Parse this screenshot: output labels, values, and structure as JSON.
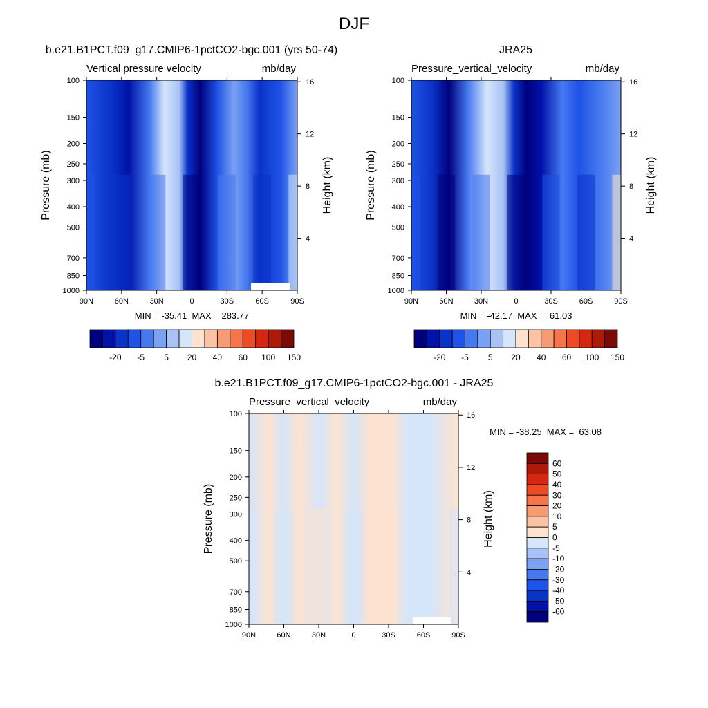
{
  "figure_title": "DJF",
  "chart_data": [
    {
      "type": "heatmap",
      "title": "b.e21.B1PCT.f09_g17.CMIP6-1pctCO2-bgc.001 (yrs 50-74)",
      "left_string": "Vertical pressure velocity",
      "right_string": "mb/day",
      "ylabel": "Pressure (mb)",
      "ylabel_right": "Height (km)",
      "x_ticks": [
        "90N",
        "60N",
        "30N",
        "0",
        "30S",
        "60S",
        "90S"
      ],
      "y_ticks": [
        "100",
        "150",
        "200",
        "250",
        "300",
        "400",
        "500",
        "700",
        "850",
        "1000"
      ],
      "y_ticks_right": [
        "16",
        "12",
        "8",
        "4"
      ],
      "min_max_text": "MIN = -35.41  MAX = 283.77",
      "min": -35.41,
      "max": 283.77,
      "colorbar_labels": [
        "-20",
        "-5",
        "5",
        "20",
        "40",
        "60",
        "100",
        "150"
      ],
      "colorbar_levels": [
        -30,
        -25,
        -20,
        -10,
        -5,
        0,
        5,
        10,
        20,
        30,
        40,
        50,
        60,
        80,
        100,
        150
      ],
      "colorbar_colors": [
        "#00007d",
        "#0012a8",
        "#0a33c8",
        "#1f52e6",
        "#4679f0",
        "#7aa1f3",
        "#a8c2f6",
        "#d5e5fa",
        "#fde3cf",
        "#fbc2a4",
        "#f79c72",
        "#f5744a",
        "#ee4a26",
        "#d5270f",
        "#ad1a08",
        "#7c0a04"
      ],
      "colorbar_orientation": "horizontal",
      "pattern": "Descending motion (blue) at all latitudes; strongest near the equator and around 60N; weakest in the subtropics (~20-30N) and near 50S.",
      "profile": [
        {
          "lat": "90N",
          "value": -18
        },
        {
          "lat": "60N",
          "value": -22
        },
        {
          "lat": "30N",
          "value": -5
        },
        {
          "lat": "0",
          "value": -33
        },
        {
          "lat": "30S",
          "value": -8
        },
        {
          "lat": "60S",
          "value": -22
        },
        {
          "lat": "90S",
          "value": 10
        }
      ]
    },
    {
      "type": "heatmap",
      "title": "JRA25",
      "left_string": "Pressure_vertical_velocity",
      "right_string": "mb/day",
      "ylabel": "Pressure (mb)",
      "ylabel_right": "Height (km)",
      "x_ticks": [
        "90N",
        "60N",
        "30N",
        "0",
        "30S",
        "60S",
        "90S"
      ],
      "y_ticks": [
        "100",
        "150",
        "200",
        "250",
        "300",
        "400",
        "500",
        "700",
        "850",
        "1000"
      ],
      "y_ticks_right": [
        "16",
        "12",
        "8",
        "4"
      ],
      "min_max_text": "MIN = -42.17  MAX =  61.03",
      "min": -42.17,
      "max": 61.03,
      "colorbar_labels": [
        "-20",
        "-5",
        "5",
        "20",
        "40",
        "60",
        "100",
        "150"
      ],
      "colorbar_levels": [
        -30,
        -25,
        -20,
        -10,
        -5,
        0,
        5,
        10,
        20,
        30,
        40,
        50,
        60,
        80,
        100,
        150
      ],
      "colorbar_colors": [
        "#00007d",
        "#0012a8",
        "#0a33c8",
        "#1f52e6",
        "#4679f0",
        "#7aa1f3",
        "#a8c2f6",
        "#d5e5fa",
        "#fde3cf",
        "#fbc2a4",
        "#f79c72",
        "#f5744a",
        "#ee4a26",
        "#d5270f",
        "#ad1a08",
        "#7c0a04"
      ],
      "colorbar_orientation": "horizontal",
      "pattern": "Similar structure to the model panel; strongest descent just north of the equator and near 65N; positive values near the surface at high southern latitudes.",
      "profile": [
        {
          "lat": "90N",
          "value": -15
        },
        {
          "lat": "60N",
          "value": -30
        },
        {
          "lat": "30N",
          "value": -5
        },
        {
          "lat": "0",
          "value": -40
        },
        {
          "lat": "30S",
          "value": -10
        },
        {
          "lat": "60S",
          "value": -20
        },
        {
          "lat": "90S",
          "value": 20
        }
      ]
    },
    {
      "type": "heatmap",
      "title": "b.e21.B1PCT.f09_g17.CMIP6-1pctCO2-bgc.001 - JRA25",
      "left_string": "Pressure_vertical_velocity",
      "right_string": "mb/day",
      "ylabel": "Pressure (mb)",
      "ylabel_right": "Height (km)",
      "x_ticks": [
        "90N",
        "60N",
        "30N",
        "0",
        "30S",
        "60S",
        "90S"
      ],
      "y_ticks": [
        "100",
        "150",
        "200",
        "250",
        "300",
        "400",
        "500",
        "700",
        "850",
        "1000"
      ],
      "y_ticks_right": [
        "16",
        "12",
        "8",
        "4"
      ],
      "min_max_text": "MIN = -38.25  MAX =  63.08",
      "min": -38.25,
      "max": 63.08,
      "colorbar_labels": [
        "60",
        "50",
        "40",
        "30",
        "20",
        "10",
        "5",
        "0",
        "-5",
        "-10",
        "-20",
        "-30",
        "-40",
        "-50",
        "-60"
      ],
      "colorbar_colors": [
        "#7c0a04",
        "#ad1a08",
        "#d5270f",
        "#ee4a26",
        "#f5744a",
        "#f79c72",
        "#fbc2a4",
        "#fde3cf",
        "#d5e5fa",
        "#a8c2f6",
        "#7aa1f3",
        "#4679f0",
        "#1f52e6",
        "#0a33c8",
        "#0012a8",
        "#00007d"
      ],
      "colorbar_orientation": "vertical",
      "pattern": "Differences mostly small (-5 to 5 mb/day): light blue at high latitudes and near 50S, light orange in the subtropics and just south of the equator; stronger negative near the surface around 80N and 70S.",
      "profile": [
        {
          "lat": "90N",
          "value": -3
        },
        {
          "lat": "60N",
          "value": -2
        },
        {
          "lat": "30N",
          "value": 2
        },
        {
          "lat": "0",
          "value": -4
        },
        {
          "lat": "30S",
          "value": 2
        },
        {
          "lat": "60S",
          "value": -3
        },
        {
          "lat": "90S",
          "value": -2
        }
      ]
    }
  ]
}
